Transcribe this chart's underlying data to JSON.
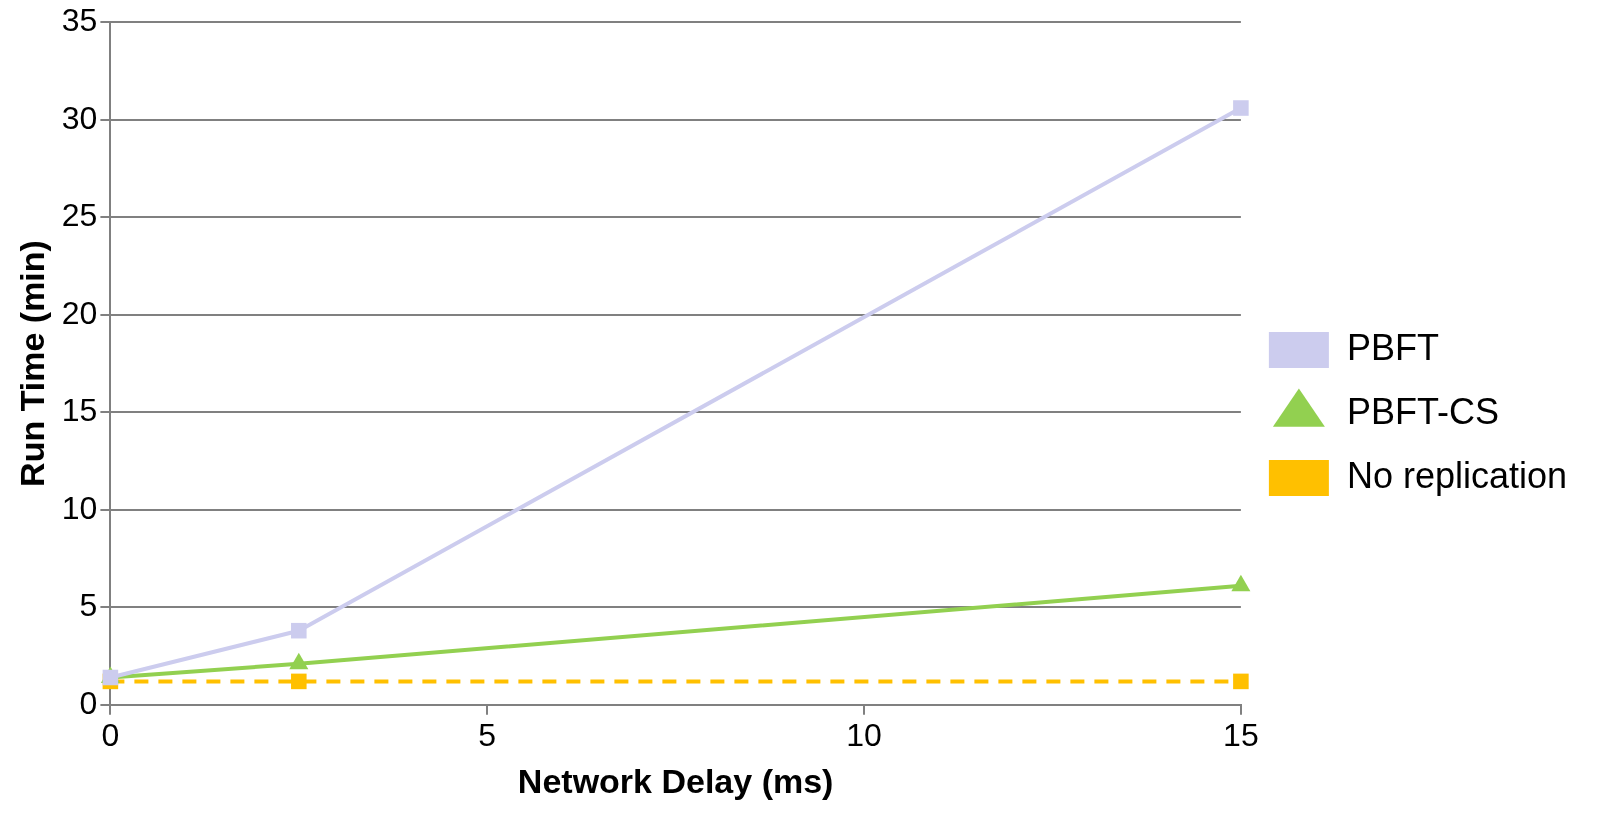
{
  "chart_data": {
    "type": "line",
    "xlabel": "Network Delay (ms)",
    "ylabel": "Run Time (min)",
    "x": [
      0,
      2.5,
      15
    ],
    "series": [
      {
        "name": "PBFT",
        "color": "#ccccee",
        "values": [
          1.4,
          3.8,
          30.6
        ],
        "marker": "square",
        "line_style": "solid"
      },
      {
        "name": "PBFT-CS",
        "color": "#92d050",
        "values": [
          1.4,
          2.1,
          6.1
        ],
        "marker": "triangle",
        "line_style": "solid"
      },
      {
        "name": "No replication",
        "color": "#ffc000",
        "values": [
          1.2,
          1.2,
          1.2
        ],
        "marker": "square",
        "line_style": "dashed"
      }
    ],
    "xlim": [
      0,
      15
    ],
    "xticks": [
      0,
      5,
      10,
      15
    ],
    "ylim": [
      0,
      35
    ],
    "yticks": [
      0,
      5,
      10,
      15,
      20,
      25,
      30,
      35
    ],
    "grid": "y",
    "legend": "right"
  }
}
